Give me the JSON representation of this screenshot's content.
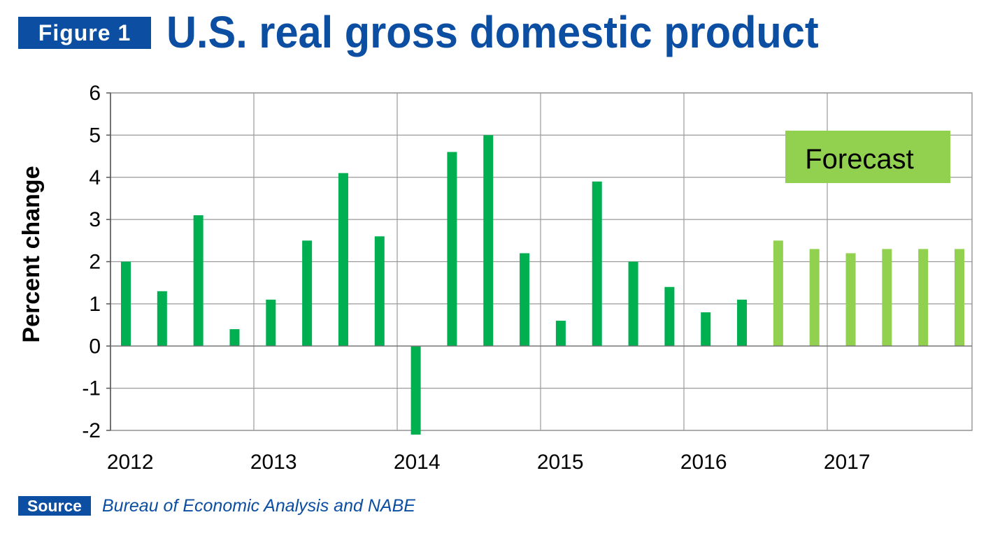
{
  "header": {
    "figure_label": "Figure 1",
    "title": "U.S. real gross domestic product"
  },
  "footer": {
    "source_label": "Source",
    "source_text": "Bureau of Economic Analysis and NABE"
  },
  "colors": {
    "brand_blue": "#0b4ea2",
    "actual_bar": "#00b050",
    "forecast_bar": "#92d050",
    "grid": "#9a9a9a"
  },
  "chart_data": {
    "type": "bar",
    "title": "U.S. real gross domestic product",
    "xlabel": "",
    "ylabel": "Percent change",
    "ylim": [
      -2,
      6
    ],
    "yticks": [
      "6",
      "5",
      "4",
      "3",
      "2",
      "1",
      "0",
      "-1",
      "-2"
    ],
    "ytick_values": [
      6,
      5,
      4,
      3,
      2,
      1,
      0,
      -1,
      -2
    ],
    "xticks": [
      "2012",
      "2013",
      "2014",
      "2015",
      "2016",
      "2017"
    ],
    "grid": true,
    "annotation": "Forecast",
    "categories": [
      "2012 Q1",
      "2012 Q2",
      "2012 Q3",
      "2012 Q4",
      "2013 Q1",
      "2013 Q2",
      "2013 Q3",
      "2013 Q4",
      "2014 Q1",
      "2014 Q2",
      "2014 Q3",
      "2014 Q4",
      "2015 Q1",
      "2015 Q2",
      "2015 Q3",
      "2015 Q4",
      "2016 Q1",
      "2016 Q2",
      "2016 Q3",
      "2016 Q4",
      "2017 Q1",
      "2017 Q2",
      "2017 Q3",
      "2017 Q4"
    ],
    "values": [
      2.0,
      1.3,
      3.1,
      0.4,
      1.1,
      2.5,
      4.1,
      2.6,
      -2.1,
      4.6,
      5.0,
      2.2,
      0.6,
      3.9,
      2.0,
      1.4,
      0.8,
      1.1,
      2.5,
      2.3,
      2.2,
      2.3,
      2.3,
      2.3
    ],
    "forecast_from_index": 18
  }
}
